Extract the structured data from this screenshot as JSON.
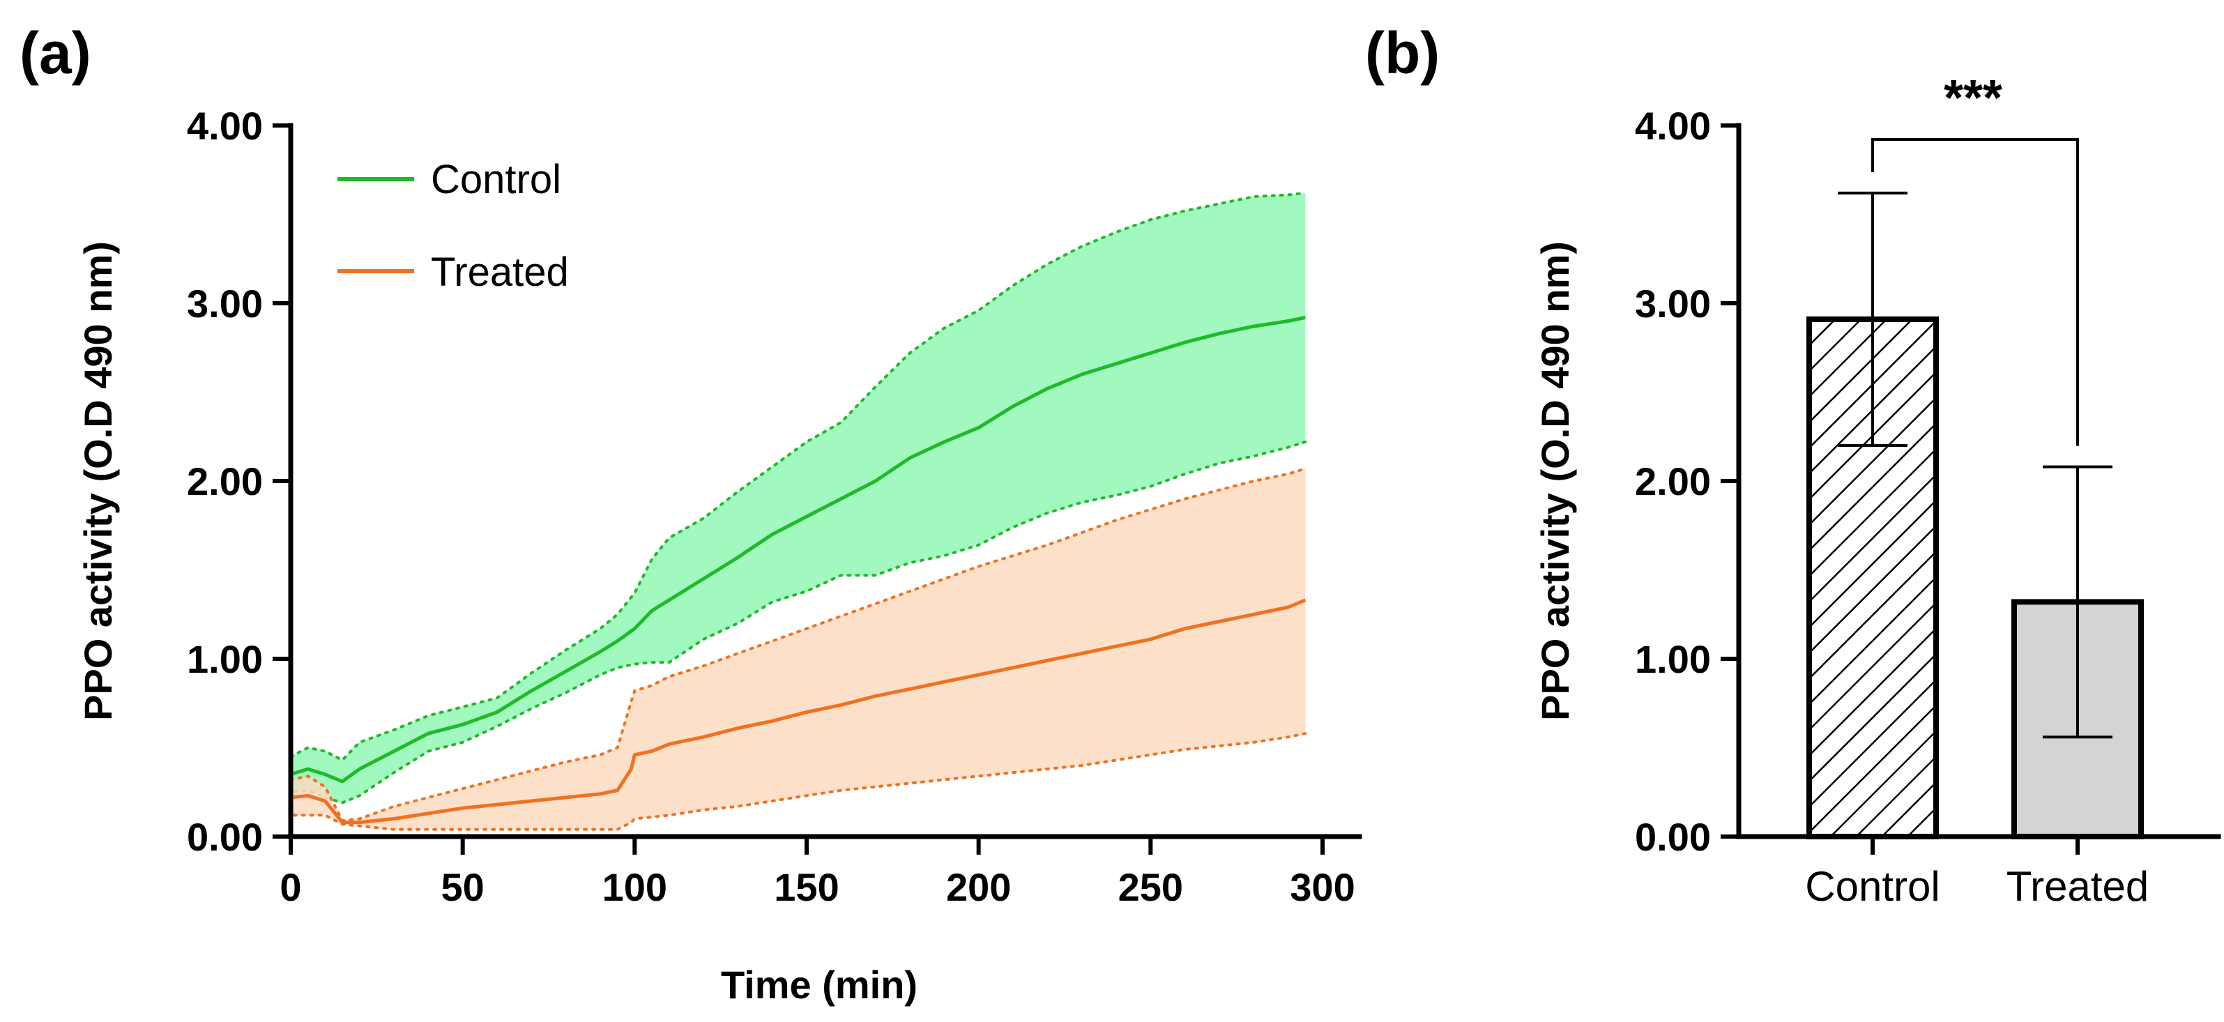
{
  "chart_data": [
    {
      "panel": "(a)",
      "type": "line",
      "title": "",
      "xlabel": "Time (min)",
      "ylabel": "PPO activity (O.D 490 nm)",
      "xlim": [
        0,
        300
      ],
      "ylim": [
        0,
        4
      ],
      "xticks": [
        0,
        50,
        100,
        150,
        200,
        250,
        300
      ],
      "yticks": [
        "0.00",
        "1.00",
        "2.00",
        "3.00",
        "4.00"
      ],
      "legend": "top-left",
      "series": [
        {
          "name": "Control",
          "color": "#1fba2a",
          "band_color": "#a1f9bf",
          "x": [
            0,
            5,
            10,
            15,
            20,
            30,
            40,
            50,
            60,
            70,
            80,
            90,
            95,
            100,
            105,
            110,
            120,
            130,
            140,
            150,
            160,
            170,
            180,
            190,
            200,
            210,
            220,
            230,
            240,
            250,
            260,
            270,
            280,
            290,
            295
          ],
          "mean": [
            0.35,
            0.38,
            0.35,
            0.31,
            0.38,
            0.48,
            0.58,
            0.63,
            0.7,
            0.82,
            0.93,
            1.04,
            1.1,
            1.17,
            1.27,
            1.33,
            1.45,
            1.57,
            1.7,
            1.8,
            1.9,
            2.0,
            2.13,
            2.22,
            2.3,
            2.42,
            2.52,
            2.6,
            2.66,
            2.72,
            2.78,
            2.83,
            2.87,
            2.9,
            2.92
          ],
          "upper": [
            0.45,
            0.5,
            0.48,
            0.43,
            0.53,
            0.6,
            0.68,
            0.73,
            0.78,
            0.92,
            1.05,
            1.17,
            1.25,
            1.37,
            1.56,
            1.68,
            1.79,
            1.94,
            2.08,
            2.22,
            2.33,
            2.53,
            2.72,
            2.86,
            2.96,
            3.1,
            3.22,
            3.32,
            3.4,
            3.47,
            3.52,
            3.56,
            3.6,
            3.61,
            3.62
          ],
          "lower": [
            0.25,
            0.26,
            0.22,
            0.19,
            0.23,
            0.36,
            0.48,
            0.53,
            0.62,
            0.72,
            0.81,
            0.91,
            0.95,
            0.97,
            0.98,
            0.98,
            1.11,
            1.2,
            1.32,
            1.38,
            1.47,
            1.47,
            1.54,
            1.58,
            1.64,
            1.74,
            1.82,
            1.88,
            1.92,
            1.97,
            2.04,
            2.1,
            2.14,
            2.19,
            2.22
          ]
        },
        {
          "name": "Treated",
          "color": "#f07121",
          "band_color": "#fcdbc0",
          "x": [
            0,
            5,
            10,
            15,
            20,
            30,
            40,
            50,
            60,
            70,
            80,
            90,
            95,
            99,
            100,
            105,
            110,
            120,
            130,
            140,
            150,
            160,
            170,
            180,
            190,
            200,
            210,
            220,
            230,
            240,
            250,
            260,
            270,
            280,
            290,
            295
          ],
          "mean": [
            0.22,
            0.23,
            0.2,
            0.08,
            0.08,
            0.1,
            0.13,
            0.16,
            0.18,
            0.2,
            0.22,
            0.24,
            0.26,
            0.38,
            0.46,
            0.48,
            0.52,
            0.56,
            0.61,
            0.65,
            0.7,
            0.74,
            0.79,
            0.83,
            0.87,
            0.91,
            0.95,
            0.99,
            1.03,
            1.07,
            1.11,
            1.17,
            1.21,
            1.25,
            1.29,
            1.33
          ],
          "upper": [
            0.32,
            0.34,
            0.28,
            0.09,
            0.1,
            0.17,
            0.22,
            0.27,
            0.32,
            0.37,
            0.42,
            0.46,
            0.5,
            0.76,
            0.82,
            0.85,
            0.9,
            0.96,
            1.03,
            1.1,
            1.17,
            1.24,
            1.31,
            1.38,
            1.45,
            1.52,
            1.58,
            1.64,
            1.71,
            1.78,
            1.84,
            1.9,
            1.95,
            2.0,
            2.04,
            2.07
          ],
          "lower": [
            0.12,
            0.12,
            0.12,
            0.07,
            0.06,
            0.04,
            0.04,
            0.04,
            0.04,
            0.04,
            0.04,
            0.04,
            0.04,
            0.08,
            0.1,
            0.11,
            0.12,
            0.15,
            0.17,
            0.2,
            0.23,
            0.26,
            0.28,
            0.3,
            0.32,
            0.34,
            0.36,
            0.38,
            0.4,
            0.43,
            0.46,
            0.49,
            0.51,
            0.53,
            0.56,
            0.58
          ]
        }
      ]
    },
    {
      "panel": "(b)",
      "type": "bar",
      "title": "",
      "xlabel": "",
      "ylabel": "PPO activity (O.D 490 nm)",
      "ylim": [
        0,
        4
      ],
      "yticks": [
        "0.00",
        "1.00",
        "2.00",
        "3.00",
        "4.00"
      ],
      "categories": [
        "Control",
        "Treated"
      ],
      "values": [
        2.91,
        1.32
      ],
      "errors": [
        0.71,
        0.76
      ],
      "fills": [
        "hatched",
        "#d4d4d4"
      ],
      "significance": "***"
    }
  ]
}
